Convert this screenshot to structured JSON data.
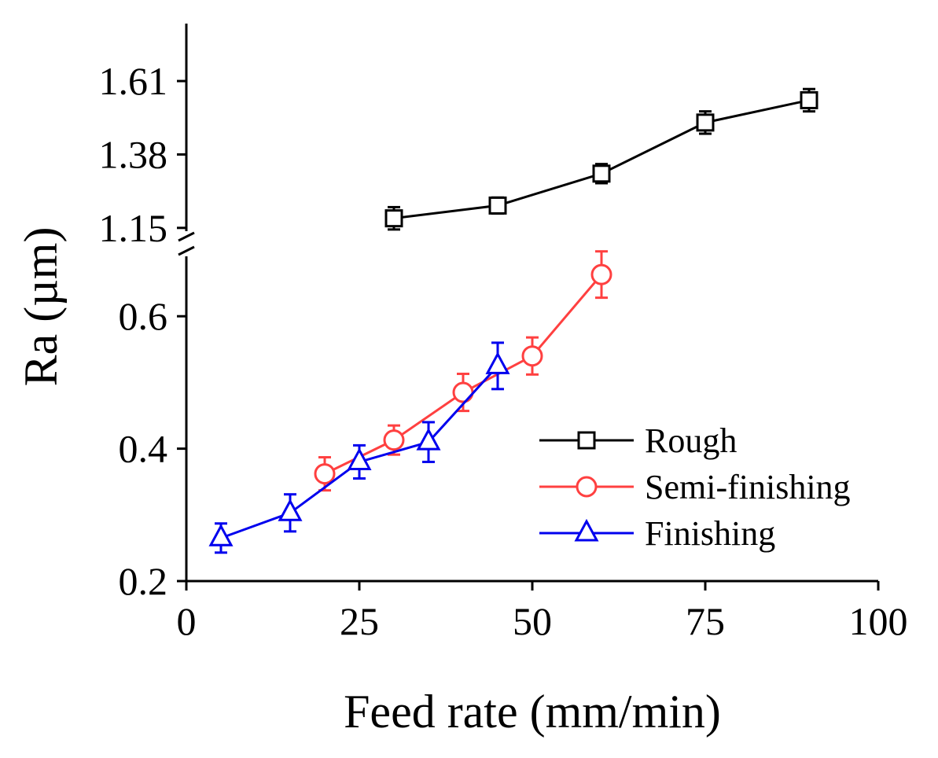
{
  "chart_data": {
    "type": "line",
    "title": "",
    "xlabel": "Feed rate (mm/min)",
    "ylabel": "Ra (µm)",
    "xlim": [
      0,
      100
    ],
    "x_ticks": [
      "0",
      "25",
      "50",
      "75",
      "100"
    ],
    "y_axis_broken": true,
    "y_lower": {
      "range": [
        0.2,
        0.7
      ],
      "ticks": [
        "0.2",
        "0.4",
        "0.6"
      ]
    },
    "y_upper": {
      "range": [
        1.12,
        1.79
      ],
      "ticks": [
        "1.15",
        "1.38",
        "1.61"
      ]
    },
    "legend_position": "lower-right",
    "series": [
      {
        "name": "Rough",
        "color": "#000000",
        "marker": "square",
        "x": [
          30,
          45,
          60,
          75,
          90
        ],
        "y": [
          1.18,
          1.22,
          1.32,
          1.48,
          1.55
        ],
        "error": [
          0.035,
          0.025,
          0.03,
          0.035,
          0.035
        ]
      },
      {
        "name": "Semi-finishing",
        "color": "#ff4040",
        "marker": "circle",
        "x": [
          20,
          30,
          40,
          50,
          60
        ],
        "y": [
          0.362,
          0.413,
          0.485,
          0.54,
          0.663
        ],
        "error": [
          0.025,
          0.022,
          0.028,
          0.028,
          0.035
        ]
      },
      {
        "name": "Finishing",
        "color": "#0000ee",
        "marker": "triangle",
        "x": [
          5,
          15,
          25,
          35,
          45
        ],
        "y": [
          0.265,
          0.303,
          0.38,
          0.41,
          0.525
        ],
        "error": [
          0.022,
          0.028,
          0.025,
          0.03,
          0.035
        ]
      }
    ]
  }
}
